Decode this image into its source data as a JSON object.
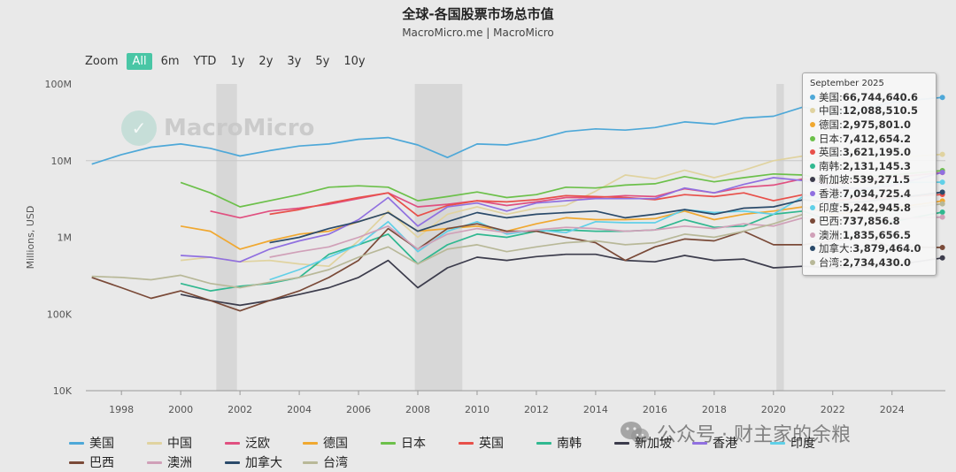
{
  "header": {
    "title": "全球-各国股票市场总市值",
    "subtitle": "MacroMicro.me | MacroMicro"
  },
  "zoom": {
    "label": "Zoom",
    "buttons": [
      "All",
      "6m",
      "YTD",
      "1y",
      "2y",
      "3y",
      "5y",
      "10y"
    ],
    "active": "All"
  },
  "watermark": "MacroMicro",
  "wechat_mark": "公众号 · 财主家的余粮",
  "tooltip": {
    "date": "September 2025",
    "rows": [
      {
        "name": "美国",
        "value": "66,744,640.6",
        "color": "#4ea8d8"
      },
      {
        "name": "中国",
        "value": "12,088,510.5",
        "color": "#e0d3a0"
      },
      {
        "name": "德国",
        "value": "2,975,801.0",
        "color": "#f0a830"
      },
      {
        "name": "日本",
        "value": "7,412,654.2",
        "color": "#6cc04a"
      },
      {
        "name": "英国",
        "value": "3,621,195.0",
        "color": "#e8504a"
      },
      {
        "name": "南韩",
        "value": "2,131,145.3",
        "color": "#30b890"
      },
      {
        "name": "新加坡",
        "value": "539,271.5",
        "color": "#3c3c4c"
      },
      {
        "name": "香港",
        "value": "7,034,725.4",
        "color": "#9070e0"
      },
      {
        "name": "印度",
        "value": "5,242,945.8",
        "color": "#60d0e8"
      },
      {
        "name": "巴西",
        "value": "737,856.8",
        "color": "#7a4a38"
      },
      {
        "name": "澳洲",
        "value": "1,835,656.5",
        "color": "#d0a0b8"
      },
      {
        "name": "加拿大",
        "value": "3,879,464.0",
        "color": "#2a4a6a"
      },
      {
        "name": "台湾",
        "value": "2,734,430.0",
        "color": "#b8b898"
      }
    ]
  },
  "chart_data": {
    "type": "line",
    "ylabel": "Millions, USD",
    "y_scale": "log",
    "ylim": [
      10000,
      100000000
    ],
    "y_ticks": [
      10000,
      100000,
      1000000,
      10000000,
      100000000
    ],
    "y_tick_labels": [
      "10K",
      "100K",
      "1M",
      "10M",
      "100M"
    ],
    "xlim": [
      1996.8,
      2025.8
    ],
    "x_ticks": [
      1998,
      2000,
      2002,
      2004,
      2006,
      2008,
      2010,
      2012,
      2014,
      2016,
      2018,
      2020,
      2022,
      2024
    ],
    "x_tick_labels": [
      "1998",
      "2000",
      "2002",
      "2004",
      "2006",
      "2008",
      "2010",
      "2012",
      "2014",
      "2016",
      "2018",
      "2020",
      "2022",
      "2024"
    ],
    "recessions": [
      [
        2001.2,
        2001.9
      ],
      [
        2007.9,
        2009.5
      ],
      [
        2020.1,
        2020.35
      ]
    ],
    "legend_position": "bottom",
    "series": [
      {
        "name": "美国",
        "color": "#4ea8d8",
        "x": [
          1997,
          1998,
          1999,
          2000,
          2001,
          2002,
          2003,
          2004,
          2005,
          2006,
          2007,
          2008,
          2009,
          2010,
          2011,
          2012,
          2013,
          2014,
          2015,
          2016,
          2017,
          2018,
          2019,
          2020,
          2021,
          2022,
          2023,
          2024,
          2025.7
        ],
        "y": [
          9000000,
          12000000,
          15000000,
          16500000,
          14500000,
          11500000,
          13500000,
          15500000,
          16500000,
          19000000,
          20000000,
          16000000,
          11000000,
          16500000,
          16000000,
          19000000,
          24000000,
          26000000,
          25000000,
          27000000,
          32000000,
          30000000,
          36000000,
          38000000,
          50000000,
          42000000,
          46000000,
          58000000,
          66744640.6
        ]
      },
      {
        "name": "中国",
        "color": "#e0d3a0",
        "x": [
          2000,
          2001,
          2002,
          2003,
          2004,
          2005,
          2006,
          2007,
          2008,
          2009,
          2010,
          2011,
          2012,
          2013,
          2014,
          2015,
          2016,
          2017,
          2018,
          2019,
          2020,
          2021,
          2022,
          2023,
          2024,
          2025.7
        ],
        "y": [
          500000,
          550000,
          480000,
          500000,
          450000,
          420000,
          900000,
          2200000,
          1000000,
          2000000,
          2500000,
          2000000,
          2400000,
          2600000,
          4000000,
          6500000,
          5800000,
          7500000,
          6000000,
          7500000,
          10000000,
          11500000,
          10500000,
          10000000,
          11000000,
          12088510.5
        ]
      },
      {
        "name": "泛欧",
        "color": "#e05080",
        "x": [
          2001,
          2002,
          2003,
          2004,
          2005,
          2006,
          2007,
          2008,
          2009,
          2010,
          2011,
          2012,
          2013,
          2014,
          2015,
          2016,
          2017,
          2018,
          2019,
          2020,
          2021,
          2022,
          2023,
          2024,
          2025.7
        ],
        "y": [
          2200000,
          1800000,
          2200000,
          2400000,
          2700000,
          3200000,
          3800000,
          2500000,
          2700000,
          3000000,
          2600000,
          2900000,
          3300000,
          3300000,
          3500000,
          3400000,
          4300000,
          3800000,
          4500000,
          4800000,
          5800000,
          5000000,
          5600000,
          6000000,
          7000000
        ]
      },
      {
        "name": "德国",
        "color": "#f0a830",
        "x": [
          2000,
          2001,
          2002,
          2003,
          2004,
          2005,
          2006,
          2007,
          2008,
          2009,
          2010,
          2011,
          2012,
          2013,
          2014,
          2015,
          2016,
          2017,
          2018,
          2019,
          2020,
          2021,
          2022,
          2023,
          2024,
          2025.7
        ],
        "y": [
          1400000,
          1200000,
          700000,
          900000,
          1100000,
          1200000,
          1600000,
          2100000,
          1200000,
          1300000,
          1400000,
          1200000,
          1500000,
          1800000,
          1700000,
          1700000,
          1750000,
          2200000,
          1700000,
          2000000,
          2200000,
          2500000,
          2000000,
          2200000,
          2400000,
          2975801.0
        ]
      },
      {
        "name": "日本",
        "color": "#6cc04a",
        "x": [
          2000,
          2001,
          2002,
          2003,
          2004,
          2005,
          2006,
          2007,
          2008,
          2009,
          2010,
          2011,
          2012,
          2013,
          2014,
          2015,
          2016,
          2017,
          2018,
          2019,
          2020,
          2021,
          2022,
          2023,
          2024,
          2025.7
        ],
        "y": [
          5200000,
          3800000,
          2500000,
          3000000,
          3600000,
          4500000,
          4700000,
          4500000,
          3000000,
          3400000,
          3900000,
          3300000,
          3600000,
          4500000,
          4400000,
          4800000,
          5000000,
          6200000,
          5300000,
          6000000,
          6700000,
          6500000,
          5500000,
          6200000,
          6500000,
          7412654.2
        ]
      },
      {
        "name": "英国",
        "color": "#e8504a",
        "x": [
          2003,
          2004,
          2005,
          2006,
          2007,
          2008,
          2009,
          2010,
          2011,
          2012,
          2013,
          2014,
          2015,
          2016,
          2017,
          2018,
          2019,
          2020,
          2021,
          2022,
          2023,
          2024,
          2025.7
        ],
        "y": [
          2000000,
          2300000,
          2800000,
          3300000,
          3800000,
          1900000,
          2600000,
          3000000,
          2900000,
          3100000,
          3500000,
          3400000,
          3300000,
          3100000,
          3600000,
          3400000,
          3800000,
          3000000,
          3600000,
          3000000,
          3200000,
          3300000,
          3621195.0
        ]
      },
      {
        "name": "南韩",
        "color": "#30b890",
        "x": [
          2000,
          2001,
          2002,
          2003,
          2004,
          2005,
          2006,
          2007,
          2008,
          2009,
          2010,
          2011,
          2012,
          2013,
          2014,
          2015,
          2016,
          2017,
          2018,
          2019,
          2020,
          2021,
          2022,
          2023,
          2024,
          2025.7
        ],
        "y": [
          250000,
          200000,
          230000,
          250000,
          300000,
          600000,
          800000,
          1100000,
          450000,
          800000,
          1100000,
          1000000,
          1200000,
          1250000,
          1200000,
          1200000,
          1250000,
          1700000,
          1350000,
          1400000,
          2000000,
          2200000,
          1600000,
          1800000,
          1600000,
          2131145.3
        ]
      },
      {
        "name": "新加坡",
        "color": "#3c3c4c",
        "x": [
          2000,
          2001,
          2002,
          2003,
          2004,
          2005,
          2006,
          2007,
          2008,
          2009,
          2010,
          2011,
          2012,
          2013,
          2014,
          2015,
          2016,
          2017,
          2018,
          2019,
          2020,
          2021,
          2022,
          2023,
          2024,
          2025.7
        ],
        "y": [
          180000,
          150000,
          130000,
          150000,
          180000,
          220000,
          300000,
          500000,
          220000,
          400000,
          550000,
          500000,
          560000,
          600000,
          600000,
          500000,
          480000,
          580000,
          500000,
          520000,
          400000,
          420000,
          400000,
          410000,
          430000,
          539271.5
        ]
      },
      {
        "name": "香港",
        "color": "#9070e0",
        "x": [
          2000,
          2001,
          2002,
          2003,
          2004,
          2005,
          2006,
          2007,
          2008,
          2009,
          2010,
          2011,
          2012,
          2013,
          2014,
          2015,
          2016,
          2017,
          2018,
          2019,
          2020,
          2021,
          2022,
          2023,
          2024,
          2025.7
        ],
        "y": [
          580000,
          550000,
          480000,
          700000,
          900000,
          1100000,
          1700000,
          3300000,
          1400000,
          2500000,
          2800000,
          2200000,
          2800000,
          3000000,
          3200000,
          3200000,
          3200000,
          4400000,
          3800000,
          4900000,
          6000000,
          5500000,
          4500000,
          4300000,
          4700000,
          7034725.4
        ]
      },
      {
        "name": "印度",
        "color": "#60d0e8",
        "x": [
          2003,
          2004,
          2005,
          2006,
          2007,
          2008,
          2009,
          2010,
          2011,
          2012,
          2013,
          2014,
          2015,
          2016,
          2017,
          2018,
          2019,
          2020,
          2021,
          2022,
          2023,
          2024,
          2025.7
        ],
        "y": [
          280000,
          380000,
          550000,
          800000,
          1600000,
          650000,
          1200000,
          1600000,
          1100000,
          1250000,
          1150000,
          1600000,
          1550000,
          1550000,
          2300000,
          2100000,
          2200000,
          2000000,
          3400000,
          3300000,
          4000000,
          5200000,
          5242945.8
        ]
      },
      {
        "name": "巴西",
        "color": "#7a4a38",
        "x": [
          1997,
          1998,
          1999,
          2000,
          2001,
          2002,
          2003,
          2004,
          2005,
          2006,
          2007,
          2008,
          2009,
          2010,
          2011,
          2012,
          2013,
          2014,
          2015,
          2016,
          2017,
          2018,
          2019,
          2020,
          2021,
          2022,
          2023,
          2024,
          2025.7
        ],
        "y": [
          300000,
          220000,
          160000,
          200000,
          150000,
          110000,
          150000,
          200000,
          300000,
          500000,
          1300000,
          700000,
          1300000,
          1500000,
          1200000,
          1200000,
          1000000,
          850000,
          500000,
          750000,
          950000,
          900000,
          1200000,
          800000,
          800000,
          900000,
          1000000,
          750000,
          737856.8
        ]
      },
      {
        "name": "澳洲",
        "color": "#d0a0b8",
        "x": [
          2003,
          2004,
          2005,
          2006,
          2007,
          2008,
          2009,
          2010,
          2011,
          2012,
          2013,
          2014,
          2015,
          2016,
          2017,
          2018,
          2019,
          2020,
          2021,
          2022,
          2023,
          2024,
          2025.7
        ],
        "y": [
          550000,
          650000,
          750000,
          1000000,
          1400000,
          700000,
          1100000,
          1300000,
          1150000,
          1250000,
          1350000,
          1300000,
          1200000,
          1250000,
          1400000,
          1300000,
          1500000,
          1400000,
          1800000,
          1600000,
          1700000,
          1750000,
          1835656.5
        ]
      },
      {
        "name": "加拿大",
        "color": "#2a4a6a",
        "x": [
          2003,
          2004,
          2005,
          2006,
          2007,
          2008,
          2009,
          2010,
          2011,
          2012,
          2013,
          2014,
          2015,
          2016,
          2017,
          2018,
          2019,
          2020,
          2021,
          2022,
          2023,
          2024,
          2025.7
        ],
        "y": [
          850000,
          1000000,
          1300000,
          1600000,
          2100000,
          1200000,
          1600000,
          2100000,
          1800000,
          2000000,
          2100000,
          2200000,
          1800000,
          2000000,
          2300000,
          2000000,
          2400000,
          2500000,
          3100000,
          2800000,
          2900000,
          3200000,
          3879464.0
        ]
      },
      {
        "name": "台湾",
        "color": "#b8b898",
        "x": [
          1997,
          1998,
          1999,
          2000,
          2001,
          2002,
          2003,
          2004,
          2005,
          2006,
          2007,
          2008,
          2009,
          2010,
          2011,
          2012,
          2013,
          2014,
          2015,
          2016,
          2017,
          2018,
          2019,
          2020,
          2021,
          2022,
          2023,
          2024,
          2025.7
        ],
        "y": [
          310000,
          300000,
          280000,
          320000,
          250000,
          220000,
          260000,
          300000,
          380000,
          550000,
          750000,
          450000,
          700000,
          800000,
          650000,
          750000,
          850000,
          900000,
          800000,
          850000,
          1100000,
          1000000,
          1200000,
          1500000,
          2000000,
          1500000,
          1800000,
          2300000,
          2734430.0
        ]
      }
    ]
  }
}
